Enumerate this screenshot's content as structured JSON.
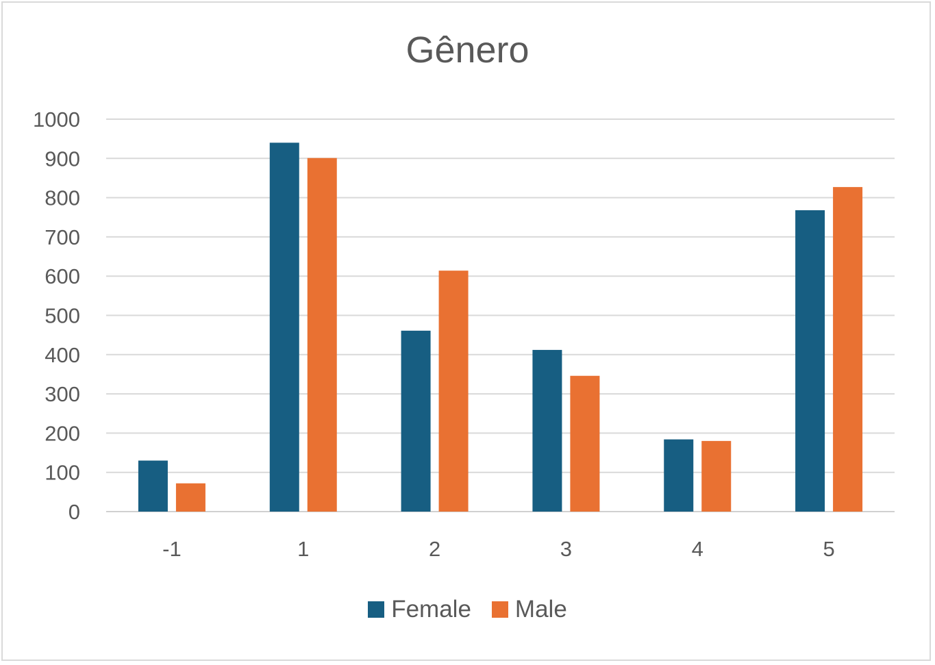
{
  "chart_data": {
    "type": "bar",
    "title": "Gênero",
    "xlabel": "",
    "ylabel": "",
    "categories": [
      "-1",
      "1",
      "2",
      "3",
      "4",
      "5"
    ],
    "series": [
      {
        "name": "Female",
        "color": "#175e82",
        "values": [
          130,
          940,
          461,
          412,
          184,
          768
        ]
      },
      {
        "name": "Male",
        "color": "#e97132",
        "values": [
          72,
          901,
          614,
          346,
          180,
          827
        ]
      }
    ],
    "ylim": [
      0,
      1000
    ],
    "yticks": [
      "0",
      "100",
      "200",
      "300",
      "400",
      "500",
      "600",
      "700",
      "800",
      "900",
      "1000"
    ],
    "grid": true,
    "legend_position": "bottom"
  }
}
